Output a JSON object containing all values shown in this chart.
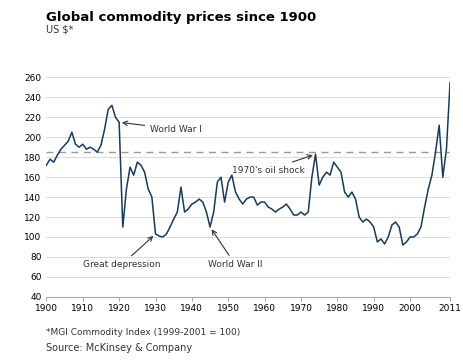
{
  "title": "Global commodity prices since 1900",
  "us_label": "US $*",
  "ylim": [
    40,
    265
  ],
  "yticks": [
    40,
    60,
    80,
    100,
    120,
    140,
    160,
    180,
    200,
    220,
    240,
    260
  ],
  "xlim": [
    1900,
    2011
  ],
  "xticks": [
    1900,
    1910,
    1920,
    1930,
    1940,
    1950,
    1960,
    1970,
    1980,
    1990,
    2000,
    2011
  ],
  "dashed_line_y": 185,
  "line_color": "#1a3a5c",
  "dashed_color": "#999999",
  "background_color": "#ffffff",
  "footnote1": "*MGI Commodity Index (1999-2001 = 100)",
  "footnote2": "Source: McKinsey & Company",
  "years": [
    1900,
    1901,
    1902,
    1903,
    1904,
    1905,
    1906,
    1907,
    1908,
    1909,
    1910,
    1911,
    1912,
    1913,
    1914,
    1915,
    1916,
    1917,
    1918,
    1919,
    1920,
    1921,
    1922,
    1923,
    1924,
    1925,
    1926,
    1927,
    1928,
    1929,
    1930,
    1931,
    1932,
    1933,
    1934,
    1935,
    1936,
    1937,
    1938,
    1939,
    1940,
    1941,
    1942,
    1943,
    1944,
    1945,
    1946,
    1947,
    1948,
    1949,
    1950,
    1951,
    1952,
    1953,
    1954,
    1955,
    1956,
    1957,
    1958,
    1959,
    1960,
    1961,
    1962,
    1963,
    1964,
    1965,
    1966,
    1967,
    1968,
    1969,
    1970,
    1971,
    1972,
    1973,
    1974,
    1975,
    1976,
    1977,
    1978,
    1979,
    1980,
    1981,
    1982,
    1983,
    1984,
    1985,
    1986,
    1987,
    1988,
    1989,
    1990,
    1991,
    1992,
    1993,
    1994,
    1995,
    1996,
    1997,
    1998,
    1999,
    2000,
    2001,
    2002,
    2003,
    2004,
    2005,
    2006,
    2007,
    2008,
    2009,
    2010,
    2011
  ],
  "values": [
    172,
    178,
    175,
    182,
    188,
    192,
    196,
    205,
    193,
    190,
    193,
    188,
    190,
    188,
    185,
    192,
    208,
    228,
    232,
    220,
    215,
    110,
    148,
    170,
    162,
    175,
    172,
    165,
    148,
    140,
    103,
    101,
    100,
    103,
    110,
    118,
    125,
    150,
    125,
    128,
    133,
    135,
    138,
    135,
    125,
    110,
    125,
    155,
    160,
    135,
    155,
    162,
    145,
    138,
    133,
    138,
    140,
    140,
    132,
    135,
    135,
    130,
    128,
    125,
    128,
    130,
    133,
    128,
    122,
    122,
    125,
    122,
    125,
    160,
    183,
    152,
    160,
    165,
    162,
    175,
    170,
    165,
    145,
    140,
    145,
    138,
    120,
    115,
    118,
    115,
    110,
    95,
    98,
    93,
    100,
    112,
    115,
    110,
    92,
    95,
    100,
    100,
    103,
    110,
    130,
    148,
    162,
    185,
    212,
    160,
    188,
    255
  ]
}
